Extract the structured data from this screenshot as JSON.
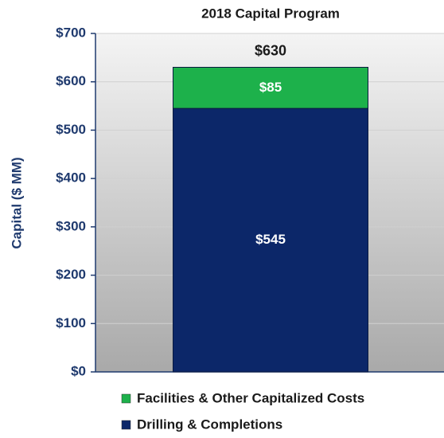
{
  "chart_data": {
    "type": "stacked_bar",
    "title": "2018 Capital Program",
    "y_label": "Capital ($ MM)",
    "categories": [
      null
    ],
    "series": [
      {
        "name": "Drilling & Completions",
        "color": "#0c2769",
        "values": [
          545
        ],
        "value_labels": [
          "$545"
        ]
      },
      {
        "name": "Facilities & Other Capitalized Costs",
        "color": "#1db14b",
        "values": [
          85
        ],
        "value_labels": [
          "$85"
        ]
      }
    ],
    "total": {
      "value": 630,
      "label": "$630"
    },
    "ylim": [
      0,
      700
    ],
    "yticks": [
      {
        "value": 0,
        "label": "$0"
      },
      {
        "value": 100,
        "label": "$100"
      },
      {
        "value": 200,
        "label": "$200"
      },
      {
        "value": 300,
        "label": "$300"
      },
      {
        "value": 400,
        "label": "$400"
      },
      {
        "value": 500,
        "label": "$500"
      },
      {
        "value": 600,
        "label": "$600"
      },
      {
        "value": 700,
        "label": "$700"
      }
    ],
    "grid": true
  }
}
